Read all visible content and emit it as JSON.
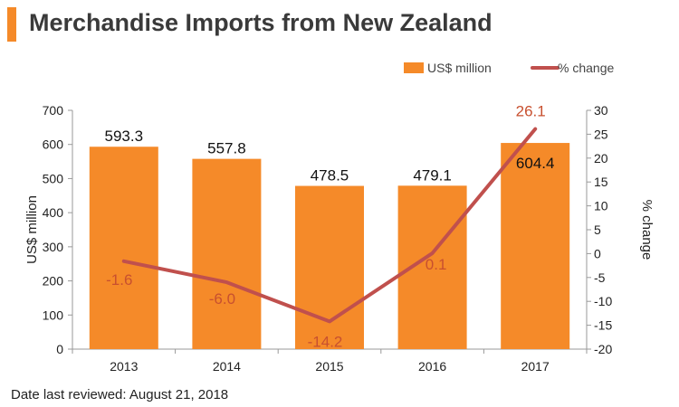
{
  "title": "Merchandise Imports from New Zealand",
  "footer": "Date last reviewed: August 21, 2018",
  "colors": {
    "bar": "#f58a29",
    "line": "#c0504d",
    "line_label": "#c8502f",
    "axis": "#999999",
    "title_accent": "#f58a29"
  },
  "chart_data": {
    "type": "bar",
    "categories": [
      "2013",
      "2014",
      "2015",
      "2016",
      "2017"
    ],
    "series": [
      {
        "name": "US$ million",
        "type": "bar",
        "axis": "left",
        "values": [
          593.3,
          557.8,
          478.5,
          479.1,
          604.4
        ],
        "labels": [
          "593.3",
          "557.8",
          "478.5",
          "479.1",
          "604.4"
        ]
      },
      {
        "name": "% change",
        "type": "line",
        "axis": "right",
        "values": [
          -1.6,
          -6.0,
          -14.2,
          0.1,
          26.1
        ],
        "labels": [
          "-1.6",
          "-6.0",
          "-14.2",
          "0.1",
          "26.1"
        ]
      }
    ],
    "ylabel": "US$ million",
    "y2label": "% change",
    "ylim": [
      0,
      700
    ],
    "y2lim": [
      -20,
      30
    ],
    "yticks": [
      "0",
      "100",
      "200",
      "300",
      "400",
      "500",
      "600",
      "700"
    ],
    "y2ticks": [
      "-20",
      "-15",
      "-10",
      "-5",
      "0",
      "5",
      "10",
      "15",
      "20",
      "25",
      "30"
    ],
    "legend_position": "top-right",
    "grid": false
  }
}
